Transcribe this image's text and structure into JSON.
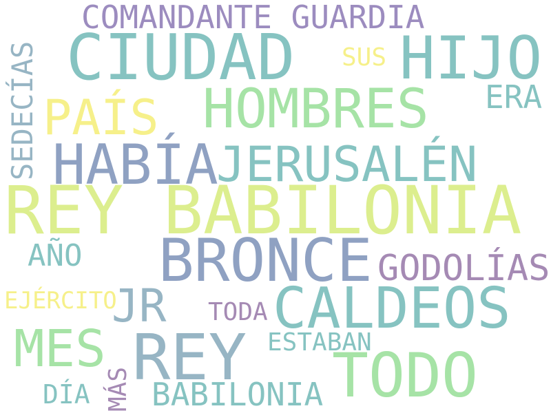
{
  "palette": {
    "purple": "#9c8cbf",
    "teal": "#86c3c1",
    "slate": "#8fa1c2",
    "green": "#a6e3a6",
    "yellow": "#f6f08a",
    "lime": "#dcee8e",
    "bluegray": "#97b5c4",
    "mauve": "#a58ab4"
  },
  "words": {
    "comandante_guardia": "COMANDANTE GUARDIA",
    "ciudad": "CIUDAD",
    "hijo": "HIJO",
    "sus": "SUS",
    "sedecias": "SEDECÍAS",
    "pais": "PAÍS",
    "hombres": "HOMBRES",
    "era": "ERA",
    "habia": "HABÍA",
    "jerusalen": "JERUSALÉN",
    "rey_babilonia": "REY BABILONIA",
    "bronce": "BRONCE",
    "ano": "AÑO",
    "godolias": "GODOLÍAS",
    "ejercito": "EJÉRCITO",
    "jr": "JR",
    "caldeos": "CALDEOS",
    "toda": "TODA",
    "mes": "MES",
    "rey": "REY",
    "estaban": "ESTABAN",
    "todo": "TODO",
    "dia": "DÍA",
    "mas": "MÁS",
    "babilonia": "BABILONIA"
  }
}
